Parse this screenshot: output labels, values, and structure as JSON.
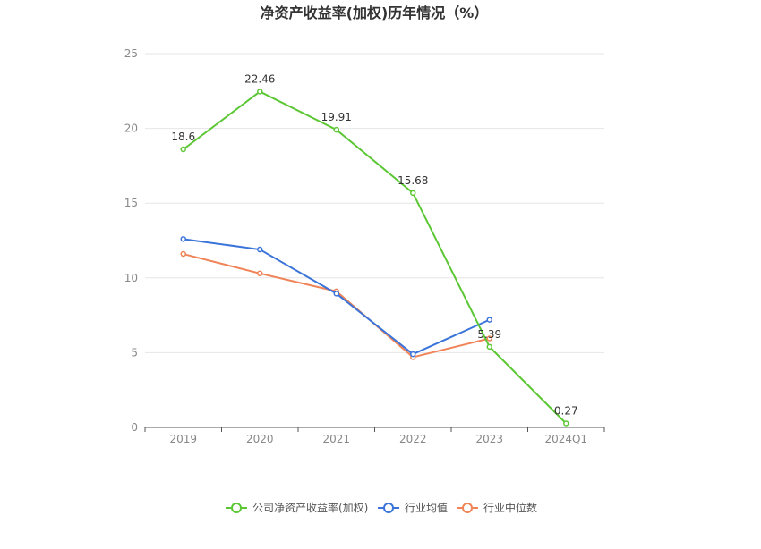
{
  "chart_data": {
    "type": "line",
    "title": "净资产收益率(加权)历年情况（%）",
    "categories": [
      "2019",
      "2020",
      "2021",
      "2022",
      "2023",
      "2024Q1"
    ],
    "ylim": [
      0,
      25
    ],
    "yticks": [
      "0",
      "5",
      "10",
      "15",
      "20",
      "25"
    ],
    "grid": true,
    "legend_position": "bottom",
    "series": [
      {
        "name": "公司净资产收益率(加权)",
        "color": "#5cc734",
        "values": [
          18.6,
          22.46,
          19.91,
          15.68,
          5.39,
          0.27
        ],
        "labels": [
          "18.6",
          "22.46",
          "19.91",
          "15.68",
          "5.39",
          "0.27"
        ]
      },
      {
        "name": "行业均值",
        "color": "#3b74d9",
        "values": [
          12.6,
          11.9,
          8.95,
          4.9,
          7.2,
          null
        ]
      },
      {
        "name": "行业中位数",
        "color": "#f08458",
        "values": [
          11.6,
          10.3,
          9.1,
          4.7,
          5.95,
          null
        ]
      }
    ]
  }
}
